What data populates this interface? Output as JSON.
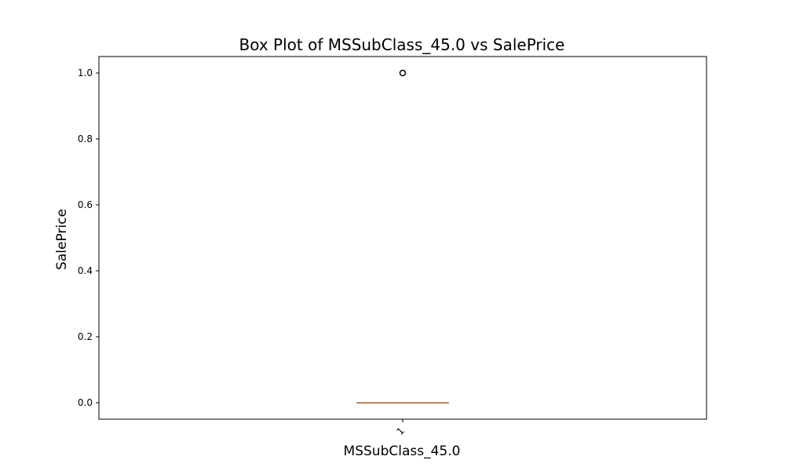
{
  "chart_data": {
    "type": "box",
    "title": "Box Plot of MSSubClass_45.0 vs SalePrice",
    "xlabel": "MSSubClass_45.0",
    "ylabel": "SalePrice",
    "categories": [
      "1"
    ],
    "ylim": [
      -0.05,
      1.05
    ],
    "yticks": [
      "0.0",
      "0.2",
      "0.4",
      "0.6",
      "0.8",
      "1.0"
    ],
    "ytick_values": [
      0.0,
      0.2,
      0.4,
      0.6,
      0.8,
      1.0
    ],
    "boxes": [
      {
        "category": "1",
        "whisker_low": 0.0,
        "q1": 0.0,
        "median": 0.0,
        "q3": 0.0,
        "whisker_high": 0.0,
        "outliers": [
          1.0
        ]
      }
    ],
    "grid": false,
    "colors": {
      "median": "#d6884a",
      "box": "#000000",
      "outlier": "#000000"
    }
  }
}
